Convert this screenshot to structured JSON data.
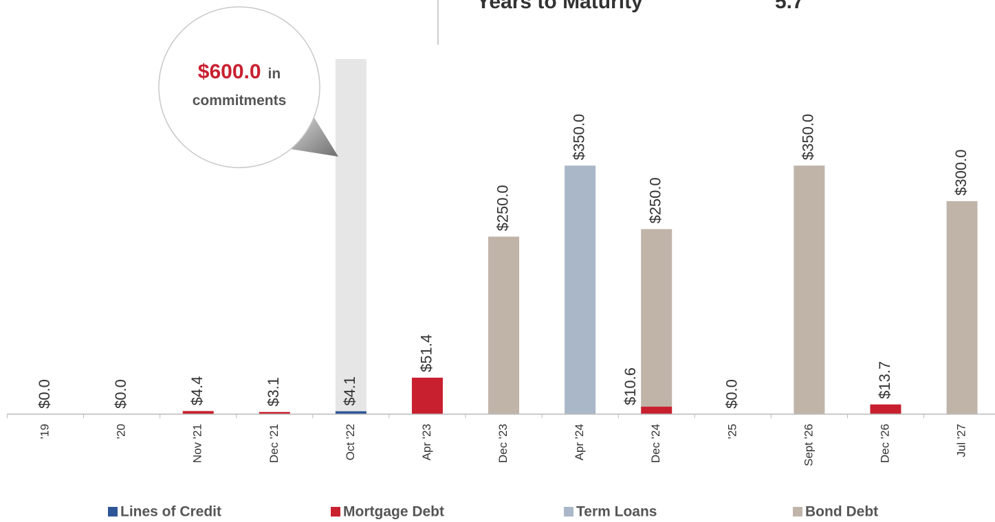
{
  "chart_data": {
    "type": "stacked_bar",
    "header": {
      "label": "Years to Maturity",
      "value": "5.7"
    },
    "callout": {
      "amount": "$600.0",
      "suffix": "in",
      "text": "commitments"
    },
    "commitment_bar": {
      "category_index": 4,
      "value": 500,
      "color": "#e6e6e6"
    },
    "categories": [
      "'19",
      "'20",
      "Nov '21",
      "Dec '21",
      "Oct '22",
      "Apr '23",
      "Dec '23",
      "Apr '24",
      "Dec '24",
      "'25",
      "Sept '26",
      "Dec '26",
      "Jul '27"
    ],
    "series": [
      {
        "name": "Lines of Credit",
        "color": "#2e5597",
        "values": [
          0,
          0,
          0,
          0,
          4.1,
          0,
          0,
          0,
          0,
          0,
          0,
          0,
          0
        ],
        "value_labels": [
          "$0.0",
          "$0.0",
          null,
          null,
          "$4.1",
          null,
          null,
          null,
          null,
          "$0.0",
          null,
          null,
          null
        ]
      },
      {
        "name": "Mortgage Debt",
        "color": "#c8202f",
        "values": [
          0,
          0,
          4.4,
          3.1,
          0,
          51.4,
          0,
          0,
          10.6,
          0,
          0,
          13.7,
          0
        ],
        "value_labels": [
          null,
          null,
          "$4.4",
          "$3.1",
          null,
          "$51.4",
          null,
          null,
          "$10.6",
          null,
          null,
          "$13.7",
          null
        ]
      },
      {
        "name": "Term Loans",
        "color": "#aab7c8",
        "values": [
          0,
          0,
          0,
          0,
          0,
          0,
          0,
          350,
          0,
          0,
          0,
          0,
          0
        ],
        "value_labels": [
          null,
          null,
          null,
          null,
          null,
          null,
          null,
          "$350.0",
          null,
          null,
          null,
          null,
          null
        ]
      },
      {
        "name": "Bond Debt",
        "color": "#c0b4a9",
        "values": [
          0,
          0,
          0,
          0,
          0,
          0,
          250,
          0,
          250,
          0,
          350,
          0,
          300
        ],
        "value_labels": [
          null,
          null,
          null,
          null,
          null,
          null,
          "$250.0",
          null,
          "$250.0",
          null,
          "$350.0",
          null,
          "$300.0"
        ]
      }
    ],
    "ylim": [
      0,
      500
    ],
    "legend": "bottom"
  }
}
